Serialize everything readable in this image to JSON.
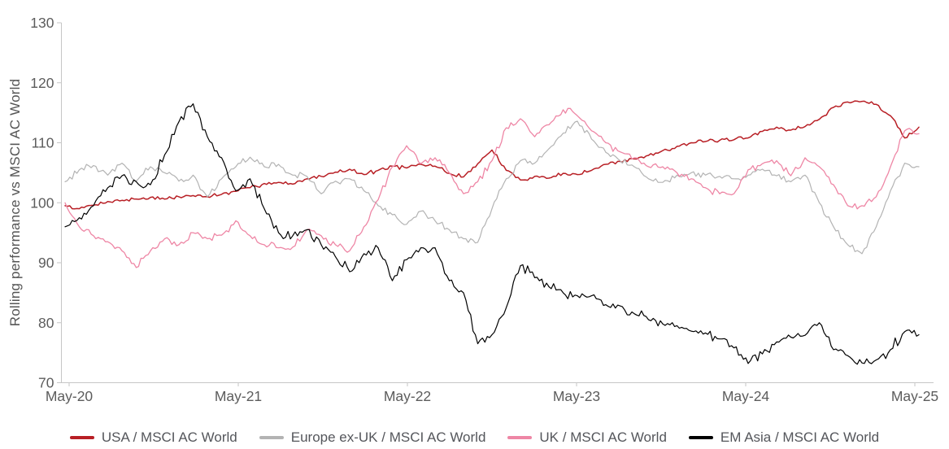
{
  "chart_data": {
    "type": "line",
    "title": "",
    "xlabel": "",
    "ylabel": "Rolling performance vs MSCI AC World",
    "ylim": [
      70,
      130
    ],
    "y_ticks": [
      130,
      120,
      110,
      100,
      90,
      80,
      70
    ],
    "x_tick_labels": [
      "May-20",
      "May-21",
      "May-22",
      "May-23",
      "May-24",
      "May-25"
    ],
    "grid": false,
    "legend_position": "bottom",
    "background_color": "#ffffff",
    "axis_color": "#c6c6c6",
    "tick_label_color": "#5c5c5c",
    "sampling": "monthly",
    "x_monthly": [
      "May-20",
      "Jun-20",
      "Jul-20",
      "Aug-20",
      "Sep-20",
      "Oct-20",
      "Nov-20",
      "Dec-20",
      "Jan-21",
      "Feb-21",
      "Mar-21",
      "Apr-21",
      "May-21",
      "Jun-21",
      "Jul-21",
      "Aug-21",
      "Sep-21",
      "Oct-21",
      "Nov-21",
      "Dec-21",
      "Jan-22",
      "Feb-22",
      "Mar-22",
      "Apr-22",
      "May-22",
      "Jun-22",
      "Jul-22",
      "Aug-22",
      "Sep-22",
      "Oct-22",
      "Nov-22",
      "Dec-22",
      "Jan-23",
      "Feb-23",
      "Mar-23",
      "Apr-23",
      "May-23",
      "Jun-23",
      "Jul-23",
      "Aug-23",
      "Sep-23",
      "Oct-23",
      "Nov-23",
      "Dec-23",
      "Jan-24",
      "Feb-24",
      "Mar-24",
      "Apr-24",
      "May-24",
      "Jun-24",
      "Jul-24",
      "Aug-24",
      "Sep-24",
      "Oct-24",
      "Nov-24",
      "Dec-24",
      "Jan-25",
      "Feb-25",
      "Mar-25",
      "Apr-25",
      "May-25"
    ],
    "series": [
      {
        "name": "USA / MSCI AC World",
        "color": "#b81f25",
        "values": [
          99.5,
          99.0,
          99.6,
          100.2,
          100.4,
          100.6,
          100.9,
          100.6,
          101.0,
          101.2,
          101.0,
          101.4,
          101.9,
          102.5,
          103.2,
          103.4,
          103.1,
          104.0,
          104.4,
          105.1,
          105.6,
          104.7,
          105.4,
          106.1,
          105.8,
          106.4,
          106.1,
          104.9,
          104.3,
          106.5,
          108.8,
          105.4,
          103.8,
          104.4,
          104.1,
          104.9,
          104.7,
          105.4,
          106.4,
          106.9,
          107.3,
          107.9,
          108.7,
          109.4,
          110.0,
          110.2,
          110.4,
          110.5,
          110.8,
          111.9,
          112.6,
          112.1,
          112.7,
          113.9,
          115.9,
          116.8,
          116.9,
          116.4,
          114.5,
          110.8,
          112.6
        ]
      },
      {
        "name": "Europe ex-UK / MSCI AC World",
        "color": "#b3b3b3",
        "values": [
          103.5,
          105.5,
          106.2,
          104.6,
          106.6,
          103.6,
          106.0,
          105.0,
          103.6,
          104.6,
          101.0,
          104.0,
          106.0,
          107.6,
          106.0,
          106.4,
          104.6,
          104.4,
          101.5,
          103.6,
          104.0,
          102.0,
          99.5,
          98.0,
          96.4,
          98.6,
          97.0,
          95.5,
          94.0,
          93.4,
          99.0,
          104.0,
          107.0,
          106.6,
          109.0,
          111.6,
          113.6,
          110.6,
          108.4,
          107.0,
          106.0,
          104.0,
          103.4,
          104.6,
          105.0,
          104.6,
          104.4,
          104.0,
          104.6,
          105.6,
          104.5,
          103.5,
          104.6,
          100.0,
          96.0,
          93.0,
          91.5,
          96.0,
          102.0,
          106.6,
          106.0
        ]
      },
      {
        "name": "UK / MSCI AC World",
        "color": "#ee86a5",
        "values": [
          100.0,
          96.0,
          94.5,
          93.5,
          92.0,
          89.2,
          92.0,
          94.0,
          93.0,
          95.0,
          94.0,
          94.6,
          97.0,
          94.5,
          93.0,
          92.5,
          92.6,
          95.5,
          94.5,
          93.0,
          92.0,
          96.0,
          100.5,
          106.0,
          109.5,
          106.5,
          107.5,
          105.0,
          101.5,
          103.5,
          107.0,
          112.5,
          114.0,
          111.0,
          113.0,
          115.5,
          114.5,
          112.0,
          110.0,
          108.5,
          107.5,
          106.0,
          106.0,
          105.0,
          104.0,
          102.5,
          101.5,
          101.5,
          105.5,
          106.5,
          107.0,
          104.5,
          107.5,
          106.0,
          103.0,
          99.5,
          99.5,
          101.0,
          106.0,
          112.0,
          111.5
        ]
      },
      {
        "name": "EM Asia / MSCI AC World",
        "color": "#000000",
        "values": [
          96.0,
          97.5,
          99.5,
          102.5,
          104.5,
          103.5,
          103.0,
          108.0,
          113.5,
          116.5,
          111.0,
          107.5,
          102.0,
          104.0,
          99.0,
          95.0,
          94.5,
          95.5,
          93.0,
          91.0,
          88.5,
          91.5,
          92.5,
          87.0,
          90.5,
          92.5,
          92.5,
          87.0,
          85.0,
          76.5,
          78.0,
          82.5,
          89.5,
          87.5,
          86.0,
          85.0,
          84.5,
          84.5,
          83.0,
          82.8,
          81.5,
          80.5,
          79.8,
          79.5,
          78.6,
          78.3,
          77.3,
          75.8,
          73.2,
          74.8,
          76.8,
          77.6,
          77.9,
          80.0,
          75.5,
          74.5,
          73.3,
          73.8,
          75.5,
          78.5,
          78.0
        ]
      }
    ]
  }
}
